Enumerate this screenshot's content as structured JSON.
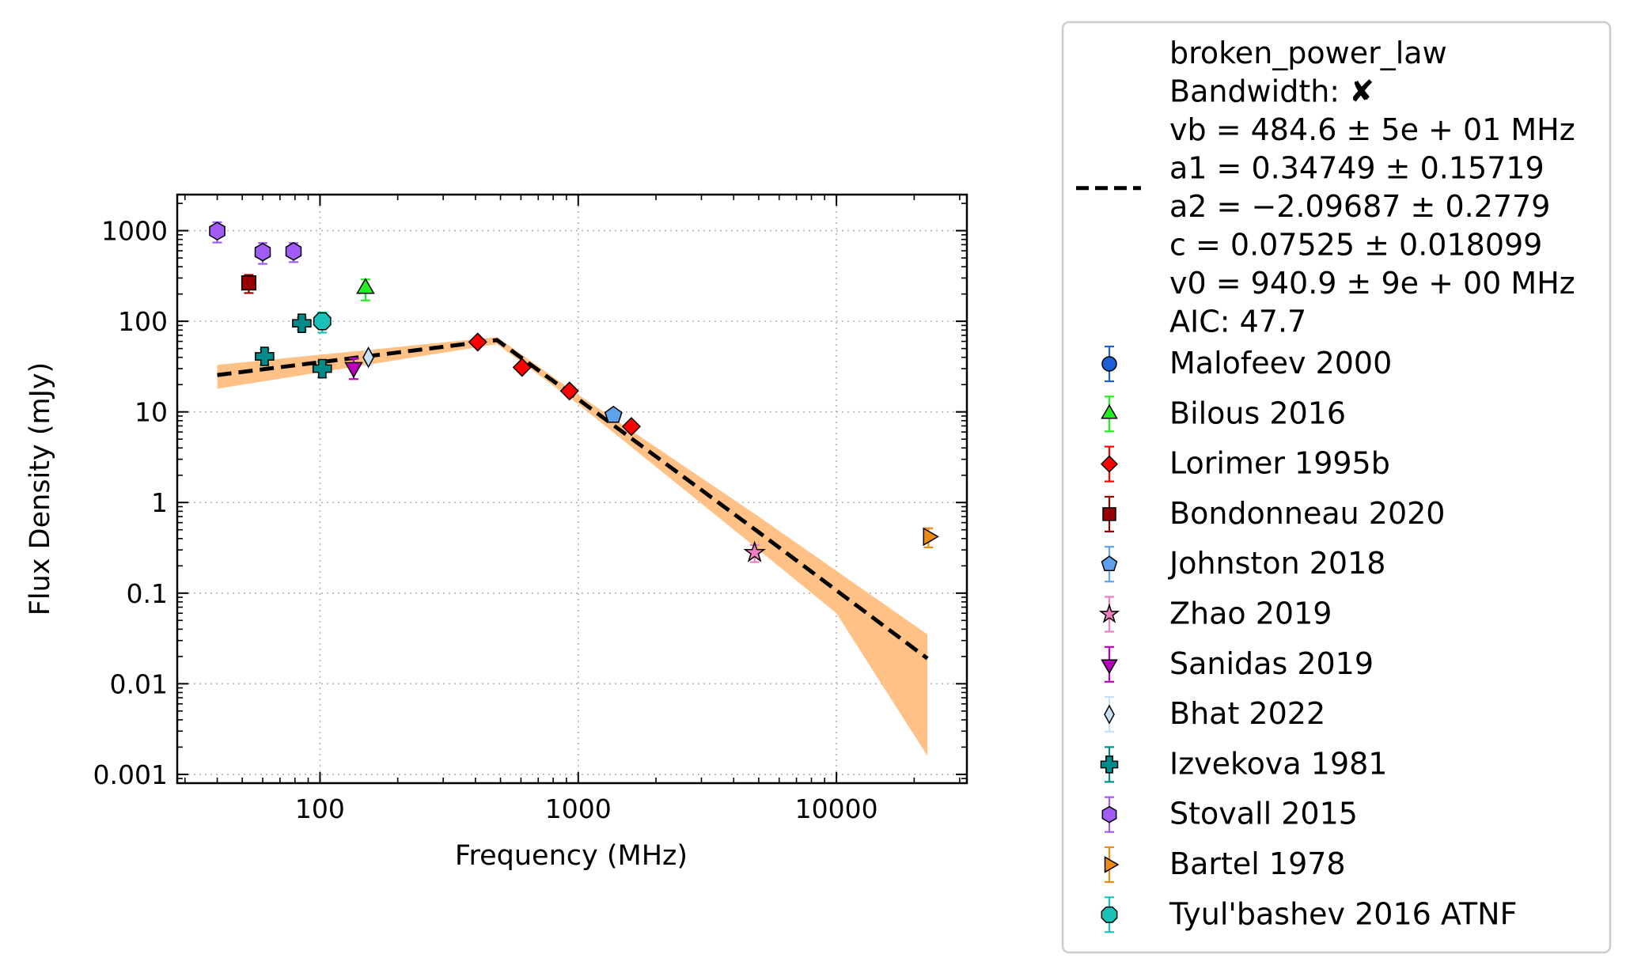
{
  "chart_data": {
    "type": "scatter",
    "xscale": "log",
    "yscale": "log",
    "xlabel": "Frequency (MHz)",
    "ylabel": "Flux Density (mJy)",
    "xlim": [
      28,
      32000
    ],
    "ylim": [
      0.0008,
      2500
    ],
    "xticks": [
      {
        "value": 100,
        "label": "100"
      },
      {
        "value": 1000,
        "label": "1000"
      },
      {
        "value": 10000,
        "label": "10000"
      }
    ],
    "yticks": [
      {
        "value": 0.001,
        "label": "0.001"
      },
      {
        "value": 0.01,
        "label": "0.01"
      },
      {
        "value": 0.1,
        "label": "0.1"
      },
      {
        "value": 1,
        "label": "1"
      },
      {
        "value": 10,
        "label": "10"
      },
      {
        "value": 100,
        "label": "100"
      },
      {
        "value": 1000,
        "label": "1000"
      }
    ],
    "grid": true,
    "legend_position": "outside-right",
    "fit": {
      "name": "broken_power_law",
      "style": "dashed",
      "color": "#000000",
      "band_color": "#ffc185",
      "legend_lines": [
        "broken_power_law",
        "Bandwidth: ✘",
        "vb = 484.6 ± 5e + 01 MHz",
        "a1 = 0.34749 ± 0.15719",
        "a2 = −2.09687 ± 0.2779",
        "c = 0.07525 ± 0.018099",
        "v0 = 940.9 ± 9e + 00 MHz",
        "AIC: 47.7"
      ],
      "line": [
        [
          40,
          25.5
        ],
        [
          484.6,
          62
        ],
        [
          1000,
          13.8
        ],
        [
          5000,
          0.47
        ],
        [
          22500,
          0.019
        ]
      ],
      "band_upper": [
        [
          40,
          33
        ],
        [
          484.6,
          67
        ],
        [
          1000,
          15.5
        ],
        [
          5000,
          0.7
        ],
        [
          22500,
          0.035
        ]
      ],
      "band_lower": [
        [
          40,
          18
        ],
        [
          484.6,
          56
        ],
        [
          1000,
          12.2
        ],
        [
          5000,
          0.3
        ],
        [
          10000,
          0.06
        ],
        [
          22500,
          0.0016
        ]
      ]
    },
    "series": [
      {
        "name": "Malofeev 2000",
        "marker": "circle",
        "color": "#1f5fd6",
        "points": []
      },
      {
        "name": "Bilous 2016",
        "marker": "triangle-up",
        "color": "#22ee22",
        "points": [
          {
            "x": 150,
            "y": 230,
            "yerr": [
              60,
              60
            ]
          }
        ]
      },
      {
        "name": "Lorimer 1995b",
        "marker": "diamond",
        "color": "#ff0000",
        "points": [
          {
            "x": 408,
            "y": 59
          },
          {
            "x": 606,
            "y": 31
          },
          {
            "x": 925,
            "y": 17
          },
          {
            "x": 1606,
            "y": 6.9
          }
        ]
      },
      {
        "name": "Bondonneau 2020",
        "marker": "square",
        "color": "#990000",
        "points": [
          {
            "x": 53,
            "y": 265,
            "yerr": [
              60,
              60
            ]
          }
        ]
      },
      {
        "name": "Johnston 2018",
        "marker": "pentagon",
        "color": "#5ea2ee",
        "points": [
          {
            "x": 1369,
            "y": 9.2
          }
        ]
      },
      {
        "name": "Zhao 2019",
        "marker": "star",
        "color": "#f27ec0",
        "points": [
          {
            "x": 4820,
            "y": 0.28,
            "yerr": [
              0.06,
              0.06
            ]
          }
        ]
      },
      {
        "name": "Sanidas 2019",
        "marker": "triangle-down",
        "color": "#bb00bb",
        "points": [
          {
            "x": 135,
            "y": 31,
            "yerr": [
              8,
              8
            ]
          }
        ]
      },
      {
        "name": "Bhat 2022",
        "marker": "thin-diamond",
        "color": "#c8e2f6",
        "points": [
          {
            "x": 154,
            "y": 40,
            "yerr": [
              7,
              7
            ]
          }
        ]
      },
      {
        "name": "Izvekova 1981",
        "marker": "plus",
        "color": "#008b8b",
        "points": [
          {
            "x": 61,
            "y": 41,
            "yerr": [
              8,
              8
            ]
          },
          {
            "x": 85,
            "y": 95,
            "yerr": [
              15,
              15
            ]
          },
          {
            "x": 102,
            "y": 30,
            "yerr": [
              6,
              6
            ]
          }
        ]
      },
      {
        "name": "Stovall 2015",
        "marker": "hexagon",
        "color": "#a15cf5",
        "points": [
          {
            "x": 40,
            "y": 990,
            "yerr": [
              250,
              250
            ]
          },
          {
            "x": 60,
            "y": 580,
            "yerr": [
              150,
              150
            ]
          },
          {
            "x": 79,
            "y": 590,
            "yerr": [
              140,
              140
            ]
          }
        ]
      },
      {
        "name": "Bartel 1978",
        "marker": "triangle-right",
        "color": "#ec8a16",
        "points": [
          {
            "x": 22700,
            "y": 0.42,
            "yerr": [
              0.1,
              0.1
            ]
          }
        ]
      },
      {
        "name": "Tyul'bashev 2016 ATNF",
        "marker": "octagon",
        "color": "#19c2b8",
        "points": [
          {
            "x": 102,
            "y": 100,
            "yerr": [
              25,
              25
            ]
          }
        ]
      }
    ]
  }
}
